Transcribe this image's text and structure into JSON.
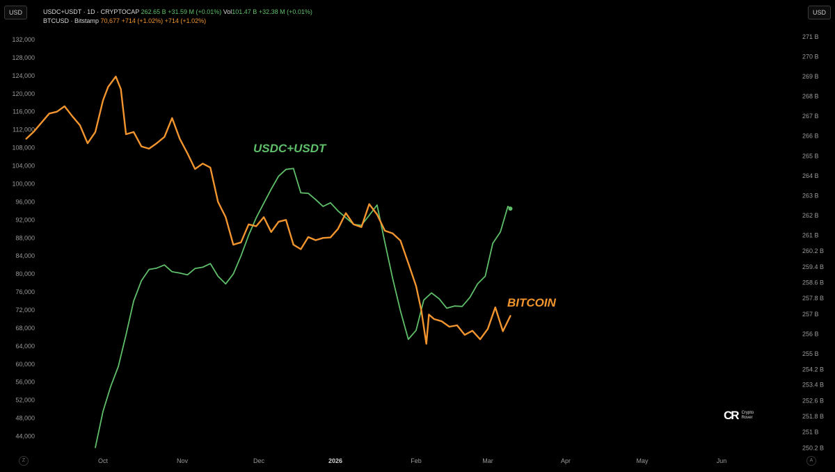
{
  "currency": {
    "left": "USD",
    "right": "USD"
  },
  "legend": {
    "stable": {
      "name": "USDC+USDT · 1D · CRYPTOCAP",
      "value": "262.65 B",
      "change": "+31.59 M (+0.01%)",
      "vol_label": "Vol",
      "vol": "101.47 B",
      "vol_change": "+32.38 M (+0.01%)"
    },
    "btc": {
      "name": "BTCUSD · Bitstamp",
      "value": "70,677",
      "change": "+714 (+1.02%)",
      "change2": "+714 (+1.02%)"
    }
  },
  "watermark": {
    "mark": "CR",
    "line1": "Crypto",
    "line2": "Rover"
  },
  "corners": {
    "left": "Z",
    "right": "A"
  },
  "chart_data": {
    "type": "line",
    "annotations": [
      {
        "text": "USDC+USDT",
        "series": "USDC+USDT",
        "color": "#5fbf6a"
      },
      {
        "text": "BITCOIN",
        "series": "BTCUSD",
        "color": "#f2952e"
      }
    ],
    "xaxis": {
      "ticks": [
        {
          "label": "Oct",
          "date": "2025-10-01"
        },
        {
          "label": "Nov",
          "date": "2025-11-01"
        },
        {
          "label": "Dec",
          "date": "2025-12-01"
        },
        {
          "label": "2026",
          "date": "2026-01-01"
        },
        {
          "label": "Feb",
          "date": "2026-02-01"
        },
        {
          "label": "Mar",
          "date": "2026-03-01"
        },
        {
          "label": "Apr",
          "date": "2026-04-01"
        },
        {
          "label": "May",
          "date": "2026-05-01"
        },
        {
          "label": "Jun",
          "date": "2026-06-01"
        }
      ]
    },
    "left_axis": {
      "unit": "USD",
      "ylim": [
        41000,
        134000
      ],
      "ticks": [
        44000,
        48000,
        52000,
        56000,
        60000,
        64000,
        68000,
        72000,
        76000,
        80000,
        84000,
        88000,
        92000,
        96000,
        100000,
        104000,
        108000,
        112000,
        116000,
        120000,
        124000,
        128000,
        132000
      ],
      "tick_labels": [
        "44,000",
        "48,000",
        "52,000",
        "56,000",
        "60,000",
        "64,000",
        "68,000",
        "72,000",
        "76,000",
        "80,000",
        "84,000",
        "88,000",
        "92,000",
        "96,000",
        "100,000",
        "104,000",
        "108,000",
        "112,000",
        "116,000",
        "120,000",
        "124,000",
        "128,000",
        "132,000"
      ]
    },
    "right_axis": {
      "unit": "USD",
      "ticks": [
        {
          "label": "250.2 B",
          "left_equiv": 41400
        },
        {
          "label": "251 B",
          "left_equiv": 44900
        },
        {
          "label": "251.8 B",
          "left_equiv": 48400
        },
        {
          "label": "252.6 B",
          "left_equiv": 51900
        },
        {
          "label": "253.4 B",
          "left_equiv": 55400
        },
        {
          "label": "254.2 B",
          "left_equiv": 58800
        },
        {
          "label": "255 B",
          "left_equiv": 62300
        },
        {
          "label": "256 B",
          "left_equiv": 66700
        },
        {
          "label": "257 B",
          "left_equiv": 71100
        },
        {
          "label": "257.8 B",
          "left_equiv": 74600
        },
        {
          "label": "258.6 B",
          "left_equiv": 78100
        },
        {
          "label": "259.4 B",
          "left_equiv": 81600
        },
        {
          "label": "260.2 B",
          "left_equiv": 85100
        },
        {
          "label": "261 B",
          "left_equiv": 88600
        },
        {
          "label": "262 B",
          "left_equiv": 93000
        },
        {
          "label": "263 B",
          "left_equiv": 97400
        },
        {
          "label": "264 B",
          "left_equiv": 101800
        },
        {
          "label": "265 B",
          "left_equiv": 106200
        },
        {
          "label": "266 B",
          "left_equiv": 110600
        },
        {
          "label": "267 B",
          "left_equiv": 115000
        },
        {
          "label": "268 B",
          "left_equiv": 119400
        },
        {
          "label": "269 B",
          "left_equiv": 123800
        },
        {
          "label": "270 B",
          "left_equiv": 128200
        },
        {
          "label": "271 B",
          "left_equiv": 132600
        }
      ]
    },
    "series": [
      {
        "name": "BTCUSD",
        "color": "#f2952e",
        "axis": "left",
        "x": [
          "2025-09-01",
          "2025-09-04",
          "2025-09-07",
          "2025-09-10",
          "2025-09-13",
          "2025-09-16",
          "2025-09-19",
          "2025-09-22",
          "2025-09-25",
          "2025-09-28",
          "2025-10-01",
          "2025-10-03",
          "2025-10-06",
          "2025-10-08",
          "2025-10-10",
          "2025-10-13",
          "2025-10-16",
          "2025-10-19",
          "2025-10-22",
          "2025-10-25",
          "2025-10-28",
          "2025-10-31",
          "2025-11-03",
          "2025-11-06",
          "2025-11-09",
          "2025-11-12",
          "2025-11-15",
          "2025-11-18",
          "2025-11-21",
          "2025-11-24",
          "2025-11-27",
          "2025-11-30",
          "2025-12-03",
          "2025-12-06",
          "2025-12-09",
          "2025-12-12",
          "2025-12-15",
          "2025-12-18",
          "2025-12-21",
          "2025-12-24",
          "2025-12-27",
          "2025-12-30",
          "2026-01-02",
          "2026-01-05",
          "2026-01-08",
          "2026-01-11",
          "2026-01-14",
          "2026-01-17",
          "2026-01-20",
          "2026-01-23",
          "2026-01-26",
          "2026-01-29",
          "2026-02-01",
          "2026-02-03",
          "2026-02-05",
          "2026-02-06",
          "2026-02-08",
          "2026-02-11",
          "2026-02-14",
          "2026-02-17",
          "2026-02-20",
          "2026-02-23",
          "2026-02-26",
          "2026-03-01",
          "2026-03-04",
          "2026-03-07",
          "2026-03-10"
        ],
        "y": [
          110000,
          111600,
          113600,
          115600,
          116000,
          117200,
          115000,
          113000,
          109000,
          111500,
          118500,
          121500,
          123800,
          121000,
          111000,
          111500,
          108300,
          107800,
          109000,
          110400,
          114600,
          110000,
          106800,
          103300,
          104500,
          103600,
          96000,
          92600,
          86500,
          87000,
          91000,
          90600,
          92600,
          89300,
          91600,
          92000,
          86500,
          85500,
          88200,
          87500,
          88000,
          88100,
          90000,
          93500,
          91000,
          90400,
          95500,
          93200,
          89600,
          89000,
          87400,
          82400,
          77300,
          72000,
          64500,
          71000,
          70000,
          69500,
          68300,
          68600,
          66500,
          67400,
          65500,
          67800,
          72600,
          67300,
          70700
        ]
      },
      {
        "name": "USDC+USDT",
        "color": "#5fbf6a",
        "axis": "left",
        "x": [
          "2025-09-28",
          "2025-10-01",
          "2025-10-04",
          "2025-10-07",
          "2025-10-10",
          "2025-10-13",
          "2025-10-16",
          "2025-10-19",
          "2025-10-22",
          "2025-10-25",
          "2025-10-28",
          "2025-10-31",
          "2025-11-03",
          "2025-11-06",
          "2025-11-09",
          "2025-11-12",
          "2025-11-15",
          "2025-11-18",
          "2025-11-21",
          "2025-11-24",
          "2025-11-27",
          "2025-11-30",
          "2025-12-03",
          "2025-12-06",
          "2025-12-09",
          "2025-12-12",
          "2025-12-15",
          "2025-12-18",
          "2025-12-21",
          "2025-12-24",
          "2025-12-27",
          "2025-12-30",
          "2026-01-02",
          "2026-01-05",
          "2026-01-08",
          "2026-01-11",
          "2026-01-14",
          "2026-01-17",
          "2026-01-20",
          "2026-01-23",
          "2026-01-26",
          "2026-01-29",
          "2026-02-01",
          "2026-02-04",
          "2026-02-07",
          "2026-02-10",
          "2026-02-13",
          "2026-02-16",
          "2026-02-19",
          "2026-02-22",
          "2026-02-25",
          "2026-02-28",
          "2026-03-03",
          "2026-03-06",
          "2026-03-09",
          "2026-03-10"
        ],
        "y": [
          41500,
          49500,
          55000,
          59500,
          66500,
          74000,
          78500,
          81000,
          81300,
          82000,
          80500,
          80200,
          79800,
          81200,
          81500,
          82300,
          79500,
          77800,
          80000,
          84000,
          88600,
          92500,
          95700,
          98800,
          101700,
          103200,
          103400,
          98000,
          97900,
          96500,
          95000,
          95800,
          94000,
          92500,
          91000,
          90800,
          93000,
          95300,
          87000,
          79000,
          71800,
          65500,
          67500,
          74200,
          75800,
          74500,
          72400,
          72900,
          72800,
          74800,
          77800,
          79500,
          86800,
          89300,
          95000,
          94500
        ]
      }
    ]
  }
}
